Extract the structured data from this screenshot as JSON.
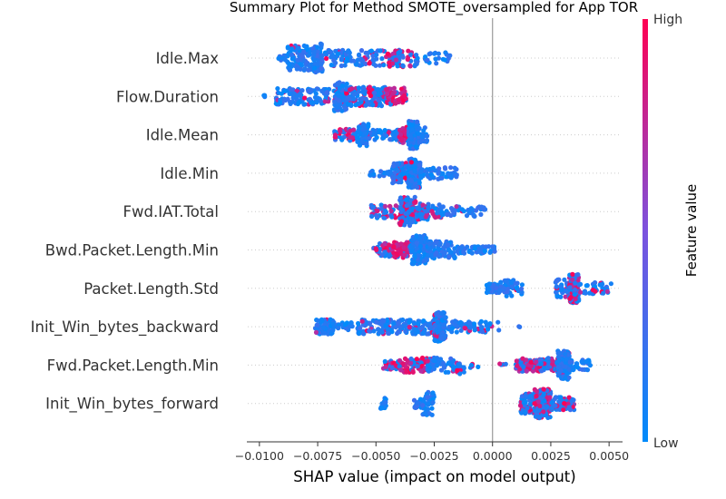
{
  "chart_data": {
    "type": "scatter",
    "title": "Summary Plot for Method SMOTE_oversampled for App TOR",
    "xlabel": "SHAP value (impact on model output)",
    "xlim": [
      -0.0105,
      0.0055
    ],
    "xticks": [
      -0.01,
      -0.0075,
      -0.005,
      -0.0025,
      0.0,
      0.0025,
      0.005
    ],
    "xtick_labels": [
      "−0.0100",
      "−0.0075",
      "−0.0050",
      "−0.0025",
      "0.0000",
      "0.0025",
      "0.0050"
    ],
    "grid": false,
    "features": [
      {
        "name": "Idle.Max",
        "clusters": [
          {
            "x0": -0.0088,
            "x1": -0.0075,
            "n": 110,
            "spread": 0.85,
            "high": 0.08
          },
          {
            "x0": -0.0077,
            "x1": -0.0073,
            "n": 70,
            "spread": 1.0,
            "high": 0.03
          },
          {
            "x0": -0.0072,
            "x1": -0.004,
            "n": 120,
            "spread": 0.55,
            "high": 0.12
          },
          {
            "x0": -0.0045,
            "x1": -0.0033,
            "n": 40,
            "spread": 0.6,
            "high": 0.6
          },
          {
            "x0": -0.0033,
            "x1": -0.0018,
            "n": 25,
            "spread": 0.4,
            "high": 0.0
          },
          {
            "x0": -0.0092,
            "x1": -0.0086,
            "n": 10,
            "spread": 0.3,
            "high": 0.2
          }
        ]
      },
      {
        "name": "Flow.Duration",
        "clusters": [
          {
            "x0": -0.0093,
            "x1": -0.007,
            "n": 120,
            "spread": 0.55,
            "high": 0.05
          },
          {
            "x0": -0.0068,
            "x1": -0.0062,
            "n": 90,
            "spread": 1.0,
            "high": 0.04
          },
          {
            "x0": -0.0063,
            "x1": -0.0045,
            "n": 120,
            "spread": 0.65,
            "high": 0.2
          },
          {
            "x0": -0.0046,
            "x1": -0.0037,
            "n": 60,
            "spread": 0.6,
            "high": 0.75
          },
          {
            "x0": -0.0099,
            "x1": -0.0097,
            "n": 3,
            "spread": 0.1,
            "high": 0.0
          }
        ]
      },
      {
        "name": "Idle.Mean",
        "clusters": [
          {
            "x0": -0.0068,
            "x1": -0.0058,
            "n": 45,
            "spread": 0.4,
            "high": 0.45
          },
          {
            "x0": -0.0058,
            "x1": -0.0053,
            "n": 60,
            "spread": 0.8,
            "high": 0.05
          },
          {
            "x0": -0.0053,
            "x1": -0.004,
            "n": 60,
            "spread": 0.35,
            "high": 0.1
          },
          {
            "x0": -0.004,
            "x1": -0.0036,
            "n": 40,
            "spread": 0.6,
            "high": 0.8
          },
          {
            "x0": -0.0036,
            "x1": -0.0032,
            "n": 110,
            "spread": 1.0,
            "high": 0.03
          },
          {
            "x0": -0.0032,
            "x1": -0.0028,
            "n": 30,
            "spread": 0.5,
            "high": 0.0
          }
        ]
      },
      {
        "name": "Idle.Min",
        "clusters": [
          {
            "x0": -0.0053,
            "x1": -0.0043,
            "n": 20,
            "spread": 0.2,
            "high": 0.0
          },
          {
            "x0": -0.0043,
            "x1": -0.0036,
            "n": 70,
            "spread": 0.7,
            "high": 0.1
          },
          {
            "x0": -0.0036,
            "x1": -0.0031,
            "n": 120,
            "spread": 1.0,
            "high": 0.02
          },
          {
            "x0": -0.0031,
            "x1": -0.0015,
            "n": 60,
            "spread": 0.4,
            "high": 0.0
          }
        ]
      },
      {
        "name": "Fwd.IAT.Total",
        "clusters": [
          {
            "x0": -0.0052,
            "x1": -0.004,
            "n": 50,
            "spread": 0.45,
            "high": 0.35
          },
          {
            "x0": -0.004,
            "x1": -0.0033,
            "n": 120,
            "spread": 1.0,
            "high": 0.3
          },
          {
            "x0": -0.0033,
            "x1": -0.0022,
            "n": 80,
            "spread": 0.55,
            "high": 0.3
          },
          {
            "x0": -0.0022,
            "x1": -0.0003,
            "n": 50,
            "spread": 0.35,
            "high": 0.05
          }
        ]
      },
      {
        "name": "Bwd.Packet.Length.Min",
        "clusters": [
          {
            "x0": -0.0051,
            "x1": -0.0043,
            "n": 40,
            "spread": 0.45,
            "high": 0.4
          },
          {
            "x0": -0.0043,
            "x1": -0.0035,
            "n": 70,
            "spread": 0.55,
            "high": 0.85
          },
          {
            "x0": -0.0035,
            "x1": -0.0028,
            "n": 110,
            "spread": 1.0,
            "high": 0.0
          },
          {
            "x0": -0.0028,
            "x1": -0.0015,
            "n": 80,
            "spread": 0.6,
            "high": 0.0
          },
          {
            "x0": -0.0015,
            "x1": 0.0001,
            "n": 60,
            "spread": 0.25,
            "high": 0.0
          }
        ]
      },
      {
        "name": "Packet.Length.Std",
        "clusters": [
          {
            "x0": -0.0003,
            "x1": 0.0003,
            "n": 50,
            "spread": 0.3,
            "high": 0.0
          },
          {
            "x0": 0.0003,
            "x1": 0.0009,
            "n": 50,
            "spread": 0.6,
            "high": 0.0
          },
          {
            "x0": 0.001,
            "x1": 0.0013,
            "n": 10,
            "spread": 0.4,
            "high": 0.05
          },
          {
            "x0": 0.0027,
            "x1": 0.0033,
            "n": 40,
            "spread": 0.6,
            "high": 0.2
          },
          {
            "x0": 0.0033,
            "x1": 0.0037,
            "n": 110,
            "spread": 1.0,
            "high": 0.6
          },
          {
            "x0": 0.0037,
            "x1": 0.0051,
            "n": 45,
            "spread": 0.4,
            "high": 0.1
          }
        ]
      },
      {
        "name": "Init_Win_bytes_backward",
        "clusters": [
          {
            "x0": -0.0076,
            "x1": -0.0068,
            "n": 70,
            "spread": 0.5,
            "high": 0.05
          },
          {
            "x0": -0.0068,
            "x1": -0.006,
            "n": 20,
            "spread": 0.3,
            "high": 0.0
          },
          {
            "x0": -0.0058,
            "x1": -0.0025,
            "n": 170,
            "spread": 0.5,
            "high": 0.05
          },
          {
            "x0": -0.0025,
            "x1": -0.002,
            "n": 130,
            "spread": 1.0,
            "high": 0.1
          },
          {
            "x0": -0.002,
            "x1": 0.0003,
            "n": 60,
            "spread": 0.4,
            "high": 0.15
          },
          {
            "x0": 0.0011,
            "x1": 0.0013,
            "n": 2,
            "spread": 0.1,
            "high": 0.0
          }
        ]
      },
      {
        "name": "Fwd.Packet.Length.Min",
        "clusters": [
          {
            "x0": -0.0047,
            "x1": -0.004,
            "n": 30,
            "spread": 0.3,
            "high": 0.5
          },
          {
            "x0": -0.004,
            "x1": -0.0028,
            "n": 60,
            "spread": 0.5,
            "high": 0.7
          },
          {
            "x0": -0.0028,
            "x1": -0.002,
            "n": 40,
            "spread": 0.5,
            "high": 0.1
          },
          {
            "x0": -0.002,
            "x1": -0.0012,
            "n": 30,
            "spread": 0.6,
            "high": 0.2
          },
          {
            "x0": -0.001,
            "x1": -0.0006,
            "n": 5,
            "spread": 0.2,
            "high": 0.5
          },
          {
            "x0": 0.0003,
            "x1": 0.0006,
            "n": 5,
            "spread": 0.1,
            "high": 0.3
          },
          {
            "x0": 0.001,
            "x1": 0.002,
            "n": 70,
            "spread": 0.45,
            "high": 0.65
          },
          {
            "x0": 0.002,
            "x1": 0.0028,
            "n": 60,
            "spread": 0.5,
            "high": 0.3
          },
          {
            "x0": 0.0028,
            "x1": 0.0033,
            "n": 120,
            "spread": 1.0,
            "high": 0.05
          },
          {
            "x0": 0.0033,
            "x1": 0.0042,
            "n": 30,
            "spread": 0.35,
            "high": 0.0
          }
        ]
      },
      {
        "name": "Init_Win_bytes_forward",
        "clusters": [
          {
            "x0": -0.0048,
            "x1": -0.0045,
            "n": 15,
            "spread": 0.4,
            "high": 0.0
          },
          {
            "x0": -0.0034,
            "x1": -0.003,
            "n": 15,
            "spread": 0.3,
            "high": 0.0
          },
          {
            "x0": -0.003,
            "x1": -0.0025,
            "n": 45,
            "spread": 0.8,
            "high": 0.0
          },
          {
            "x0": 0.0012,
            "x1": 0.0018,
            "n": 60,
            "spread": 0.7,
            "high": 0.15
          },
          {
            "x0": 0.0018,
            "x1": 0.0025,
            "n": 170,
            "spread": 1.0,
            "high": 0.45
          },
          {
            "x0": 0.0025,
            "x1": 0.0035,
            "n": 80,
            "spread": 0.45,
            "high": 0.25
          }
        ]
      }
    ],
    "zero_line": 0.0,
    "colorbar": {
      "label": "Feature value",
      "high_label": "High",
      "low_label": "Low",
      "low_color": "#008bfb",
      "mid_color": "#7c52de",
      "high_color": "#ff0052"
    }
  }
}
